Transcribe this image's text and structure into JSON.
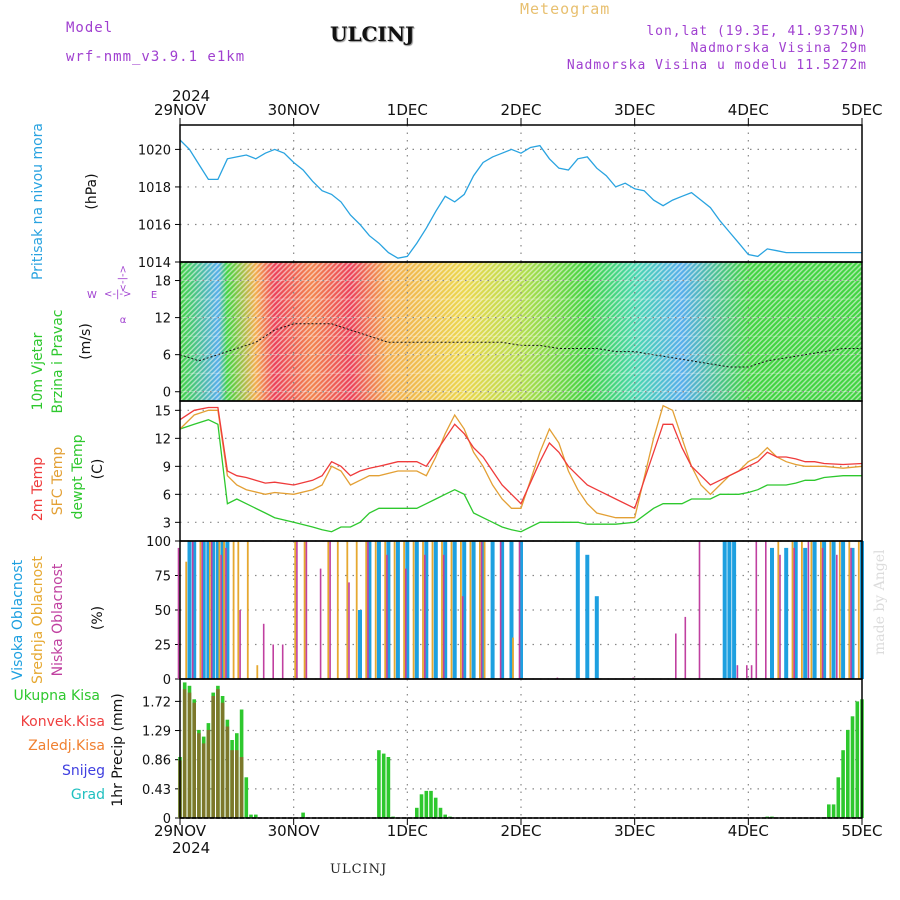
{
  "header": {
    "model_label": "Model",
    "model_name": "wrf-nmm_v3.9.1 e1km",
    "station": "ULCINJ",
    "product": "Meteogram",
    "lonlat": "lon,lat (19.3E, 41.9375N)",
    "elevation": "Nadmorska Visina 29m",
    "model_elevation": "Nadmorska Visina u modelu 11.5272m"
  },
  "footer": {
    "station": "ULCINJ",
    "credit": "made by Angel"
  },
  "colors": {
    "pressure": "#29a3e0",
    "temp2m": "#ef3b3b",
    "sfc": "#e3a035",
    "dewpt": "#2ec82e",
    "high_cloud": "#1ea0e0",
    "mid_cloud": "#e6a830",
    "low_cloud": "#c040a0",
    "total_precip": "#2ec82e",
    "conv_precip": "#ef4040",
    "frz_precip": "#f08030",
    "snow": "#4040e0",
    "hail": "#20c0c0",
    "header_purple": "#a040d0",
    "header_orange": "#e8c070"
  },
  "time_axis": {
    "year": "2024",
    "labels": [
      "29NOV",
      "30NOV",
      "1DEC",
      "2DEC",
      "3DEC",
      "4DEC",
      "5DEC"
    ]
  },
  "chart_data": [
    {
      "type": "line",
      "title": "Pritisak na nivou mora",
      "ylabel": "(hPa)",
      "ylim": [
        1014,
        1021.3
      ],
      "yticks": [
        "1014",
        "1016",
        "1018",
        "1020"
      ],
      "grid": true,
      "x_units": "hours from 29NOV 00 UTC",
      "series": [
        {
          "key": "pressure",
          "x": [
            0,
            2,
            4,
            6,
            8,
            10,
            12,
            14,
            16,
            18,
            20,
            22,
            24,
            26,
            28,
            30,
            32,
            34,
            36,
            38,
            40,
            42,
            44,
            46,
            48,
            50,
            52,
            54,
            56,
            58,
            60,
            62,
            64,
            66,
            68,
            70,
            72,
            74,
            76,
            78,
            80,
            82,
            84,
            86,
            88,
            90,
            92,
            94,
            96,
            98,
            100,
            102,
            104,
            106,
            108,
            110,
            112,
            114,
            116,
            118,
            120,
            122,
            124,
            126,
            128,
            130,
            132,
            134,
            136,
            138,
            140,
            142,
            144
          ],
          "y": [
            1020.5,
            1020.0,
            1019.2,
            1018.4,
            1018.4,
            1019.5,
            1019.6,
            1019.7,
            1019.5,
            1019.8,
            1020.0,
            1019.8,
            1019.3,
            1018.9,
            1018.3,
            1017.8,
            1017.6,
            1017.2,
            1016.5,
            1016.0,
            1015.4,
            1015.0,
            1014.5,
            1014.2,
            1014.3,
            1015.0,
            1015.8,
            1016.7,
            1017.5,
            1017.2,
            1017.6,
            1018.6,
            1019.3,
            1019.6,
            1019.8,
            1020.0,
            1019.8,
            1020.1,
            1020.2,
            1019.5,
            1019.0,
            1018.9,
            1019.5,
            1019.6,
            1019.0,
            1018.6,
            1018.0,
            1018.2,
            1017.9,
            1017.8,
            1017.3,
            1017.0,
            1017.3,
            1017.5,
            1017.7,
            1017.3,
            1016.9,
            1016.2,
            1015.6,
            1015.0,
            1014.4,
            1014.3,
            1014.7,
            1014.6,
            1014.5,
            1014.5,
            1014.5,
            1014.5,
            1014.5,
            1014.5,
            1014.5,
            1014.5,
            1014.5
          ]
        }
      ]
    },
    {
      "type": "scatter",
      "title": "10m Vjetar",
      "subtitle": "Brzina i Pravac",
      "ylabel": "(m/s)",
      "ylim": [
        -1.5,
        21
      ],
      "yticks": [
        "0",
        "6",
        "12",
        "18"
      ],
      "direction_key": [
        "N",
        "S",
        "W",
        "E"
      ],
      "direction_arrows": [
        "<-|->",
        "<-|->"
      ],
      "series": [
        {
          "key": "wind",
          "x": [
            0,
            4,
            8,
            12,
            16,
            20,
            24,
            28,
            32,
            36,
            40,
            44,
            48,
            52,
            56,
            60,
            64,
            68,
            72,
            76,
            80,
            84,
            88,
            92,
            96,
            100,
            104,
            108,
            112,
            116,
            120,
            124,
            128,
            132,
            136,
            140,
            144
          ],
          "y": [
            6,
            5,
            6,
            7,
            8,
            10,
            11,
            11,
            11,
            10,
            9,
            8,
            8,
            8,
            8,
            8,
            8,
            8,
            7.5,
            7.5,
            7,
            7,
            7,
            6.5,
            6.5,
            6,
            5.5,
            5,
            4.5,
            4,
            4,
            5,
            5.5,
            6,
            6.5,
            7,
            7
          ]
        }
      ]
    },
    {
      "type": "line",
      "title_2m": "2m Temp",
      "title_sfc": "SFC Temp",
      "title_dew": "dewpt Temp",
      "ylabel": "(C)",
      "ylim": [
        1,
        16
      ],
      "yticks": [
        "3",
        "6",
        "9",
        "12",
        "15"
      ],
      "series": [
        {
          "key": "temp2m",
          "x": [
            0,
            3,
            6,
            8,
            10,
            12,
            14,
            18,
            20,
            24,
            28,
            30,
            32,
            34,
            36,
            38,
            40,
            42,
            46,
            48,
            50,
            52,
            54,
            56,
            58,
            60,
            62,
            64,
            66,
            68,
            70,
            72,
            76,
            78,
            80,
            82,
            84,
            86,
            88,
            92,
            96,
            100,
            102,
            104,
            106,
            108,
            110,
            112,
            114,
            116,
            118,
            120,
            122,
            124,
            126,
            128,
            130,
            132,
            134,
            136,
            140,
            144
          ],
          "y": [
            14.0,
            15.0,
            15.3,
            15.3,
            8.5,
            8.0,
            7.8,
            7.2,
            7.3,
            7.0,
            7.5,
            8.0,
            9.5,
            9.0,
            8.0,
            8.5,
            8.8,
            9.0,
            9.5,
            9.5,
            9.5,
            9.0,
            10.5,
            12.0,
            13.5,
            12.5,
            11.0,
            10.0,
            8.5,
            7.0,
            6.0,
            5.0,
            9.5,
            11.5,
            10.5,
            9.0,
            8.0,
            7.0,
            6.5,
            5.5,
            4.5,
            10.5,
            13.5,
            13.5,
            11.0,
            9.0,
            8.0,
            7.0,
            7.5,
            8.0,
            8.5,
            9.0,
            9.5,
            10.5,
            10.0,
            10.0,
            9.8,
            9.5,
            9.5,
            9.3,
            9.2,
            9.3
          ]
        },
        {
          "key": "sfc",
          "x": [
            0,
            3,
            6,
            8,
            10,
            12,
            14,
            18,
            20,
            24,
            28,
            30,
            32,
            34,
            36,
            38,
            40,
            42,
            46,
            48,
            50,
            52,
            54,
            56,
            58,
            60,
            62,
            64,
            66,
            68,
            70,
            72,
            76,
            78,
            80,
            82,
            84,
            86,
            88,
            92,
            96,
            100,
            102,
            104,
            106,
            108,
            110,
            112,
            114,
            116,
            118,
            120,
            122,
            124,
            126,
            128,
            130,
            132,
            134,
            136,
            140,
            144
          ],
          "y": [
            13.0,
            14.5,
            15.0,
            15.0,
            8.0,
            7.0,
            6.5,
            6.0,
            6.2,
            6.0,
            6.5,
            7.0,
            9.0,
            8.5,
            7.0,
            7.5,
            8.0,
            8.0,
            8.5,
            8.5,
            8.5,
            8.0,
            10.0,
            12.5,
            14.5,
            13.0,
            10.5,
            9.0,
            7.0,
            5.5,
            4.5,
            4.5,
            10.5,
            13.0,
            11.5,
            8.5,
            6.5,
            5.0,
            4.0,
            3.5,
            3.5,
            12.0,
            15.5,
            15.0,
            12.0,
            9.0,
            7.0,
            6.0,
            7.0,
            8.0,
            8.5,
            9.5,
            10.0,
            11.0,
            10.0,
            9.5,
            9.2,
            9.0,
            9.0,
            9.0,
            8.8,
            9.0
          ]
        },
        {
          "key": "dewpt",
          "x": [
            0,
            3,
            6,
            8,
            10,
            12,
            14,
            18,
            20,
            24,
            28,
            30,
            32,
            34,
            36,
            38,
            40,
            42,
            46,
            48,
            50,
            52,
            54,
            56,
            58,
            60,
            62,
            64,
            66,
            68,
            70,
            72,
            76,
            78,
            80,
            82,
            84,
            86,
            88,
            92,
            96,
            100,
            102,
            104,
            106,
            108,
            110,
            112,
            114,
            116,
            118,
            120,
            122,
            124,
            126,
            128,
            130,
            132,
            134,
            136,
            140,
            144
          ],
          "y": [
            13.0,
            13.5,
            14.0,
            13.5,
            5.0,
            5.5,
            5.0,
            4.0,
            3.5,
            3.0,
            2.5,
            2.2,
            2.0,
            2.5,
            2.5,
            3.0,
            4.0,
            4.5,
            4.5,
            4.5,
            4.5,
            5.0,
            5.5,
            6.0,
            6.5,
            6.0,
            4.0,
            3.5,
            3.0,
            2.5,
            2.2,
            2.0,
            3.0,
            3.0,
            3.0,
            3.0,
            3.0,
            2.8,
            2.8,
            2.8,
            3.0,
            4.5,
            5.0,
            5.0,
            5.0,
            5.5,
            5.5,
            5.5,
            6.0,
            6.0,
            6.0,
            6.2,
            6.5,
            7.0,
            7.0,
            7.0,
            7.2,
            7.5,
            7.5,
            7.8,
            8.0,
            8.0
          ]
        }
      ]
    },
    {
      "type": "bar",
      "title_high": "Visoka Oblacnost",
      "title_mid": "Srednja Oblacnost",
      "title_low": "Niska Oblacnost",
      "ylabel": "(%)",
      "ylim": [
        0,
        100
      ],
      "yticks": [
        "0",
        "25",
        "50",
        "75",
        "100"
      ],
      "series": [
        {
          "key": "high_cloud",
          "x": [
            2,
            3,
            5,
            6,
            7,
            8,
            9,
            10,
            38,
            40,
            42,
            44,
            46,
            48,
            50,
            52,
            54,
            56,
            58,
            60,
            62,
            64,
            66,
            68,
            70,
            72,
            84,
            86,
            88,
            115,
            116,
            117,
            125,
            128,
            130,
            132,
            134,
            136,
            138,
            140,
            142,
            144
          ],
          "y": [
            100,
            100,
            100,
            100,
            100,
            100,
            100,
            100,
            50,
            100,
            100,
            100,
            100,
            100,
            100,
            100,
            100,
            100,
            100,
            100,
            100,
            100,
            100,
            100,
            100,
            100,
            100,
            90,
            60,
            100,
            100,
            100,
            95,
            95,
            100,
            95,
            100,
            100,
            100,
            100,
            95,
            100
          ]
        },
        {
          "key": "mid_cloud",
          "x": [
            1,
            4,
            6,
            8,
            9,
            11,
            12,
            14,
            16,
            24,
            26,
            31,
            33,
            35,
            37,
            39,
            41,
            43,
            45,
            47,
            49,
            51,
            53,
            55,
            57,
            59,
            61,
            63,
            64,
            70,
            126,
            129,
            131,
            133,
            135,
            137,
            139,
            141,
            143
          ],
          "y": [
            85,
            100,
            100,
            100,
            100,
            100,
            100,
            100,
            10,
            100,
            100,
            100,
            100,
            100,
            100,
            100,
            100,
            100,
            100,
            100,
            100,
            100,
            100,
            100,
            100,
            100,
            100,
            100,
            100,
            30,
            100,
            100,
            100,
            100,
            100,
            100,
            100,
            100,
            100
          ]
        },
        {
          "key": "low_cloud",
          "x": [
            0,
            3,
            5,
            7,
            9,
            10,
            13,
            18,
            20,
            22,
            25,
            27,
            30,
            32,
            36,
            40,
            44,
            48,
            52,
            56,
            60,
            64,
            68,
            72,
            80,
            96,
            105,
            107,
            110,
            118,
            120,
            121,
            122,
            124,
            127,
            130,
            133,
            136,
            139,
            142
          ],
          "y": [
            95,
            100,
            100,
            100,
            90,
            95,
            50,
            40,
            25,
            25,
            100,
            100,
            80,
            100,
            70,
            100,
            90,
            80,
            90,
            90,
            60,
            100,
            100,
            100,
            1,
            1,
            33,
            45,
            100,
            10,
            10,
            10,
            100,
            100,
            90,
            95,
            100,
            95,
            90,
            95
          ]
        }
      ]
    },
    {
      "type": "bar",
      "title_total": "Ukupna Kisa",
      "title_conv": "Konvek.Kisa",
      "title_frz": "Zaledj.Kisa",
      "title_snow": "Snijeg",
      "title_hail": "Grad",
      "ylabel": "1hr Precip (mm)",
      "ylim": [
        0,
        2.05
      ],
      "yticks": [
        "0",
        "0.43",
        "0.86",
        "1.29",
        "1.72"
      ],
      "series": [
        {
          "key": "total_precip",
          "x": [
            0,
            1,
            2,
            3,
            4,
            5,
            6,
            7,
            8,
            9,
            10,
            11,
            12,
            13,
            14,
            15,
            16,
            26,
            42,
            43,
            44,
            45,
            50,
            51,
            52,
            53,
            54,
            55,
            56,
            57,
            124,
            125,
            137,
            138,
            139,
            140,
            141,
            142,
            143,
            144
          ],
          "y": [
            0.9,
            2.0,
            1.95,
            1.75,
            1.3,
            1.2,
            1.4,
            1.85,
            1.95,
            1.8,
            1.45,
            1.15,
            1.25,
            1.6,
            0.6,
            0.05,
            0.05,
            0.08,
            1.0,
            0.95,
            0.9,
            0.02,
            0.15,
            0.35,
            0.4,
            0.4,
            0.3,
            0.15,
            0.05,
            0.02,
            0.02,
            0.02,
            0.2,
            0.2,
            0.6,
            1.0,
            1.3,
            1.5,
            1.72,
            1.75
          ]
        },
        {
          "key": "conv_precip",
          "x": [
            0,
            1,
            2,
            3,
            4,
            5,
            6,
            7,
            8,
            9,
            10,
            11,
            12,
            13
          ],
          "y": [
            0.85,
            1.9,
            1.85,
            1.7,
            1.25,
            1.1,
            1.3,
            1.8,
            1.9,
            1.7,
            1.35,
            1.0,
            1.0,
            0.9
          ]
        }
      ]
    }
  ]
}
